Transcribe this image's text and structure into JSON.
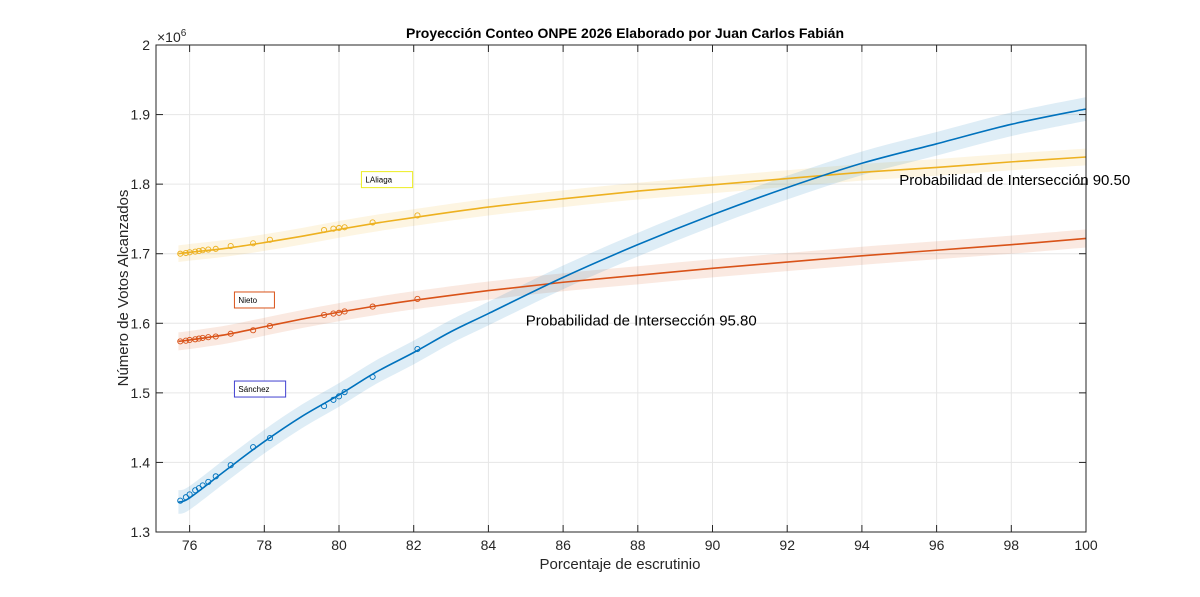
{
  "chart_data": {
    "type": "line",
    "title": "Proyección Conteo ONPE 2026 Elaborado por Juan Carlos Fabián",
    "xlabel": "Porcentaje de escrutinio",
    "ylabel": "Número de Votos Alcanzados",
    "y_exponent_label": "×10",
    "y_exponent_power": "6",
    "xlim": [
      75.1,
      100
    ],
    "ylim": [
      1.3,
      2.0
    ],
    "y_scale_factor": 1000000,
    "xticks": [
      76,
      78,
      80,
      82,
      84,
      86,
      88,
      90,
      92,
      94,
      96,
      98,
      100
    ],
    "yticks": [
      1.3,
      1.4,
      1.5,
      1.6,
      1.7,
      1.8,
      1.9,
      2.0
    ],
    "xtick_labels": [
      "76",
      "78",
      "80",
      "82",
      "84",
      "86",
      "88",
      "90",
      "92",
      "94",
      "96",
      "98",
      "100"
    ],
    "ytick_labels": [
      "1.3",
      "1.4",
      "1.5",
      "1.6",
      "1.7",
      "1.8",
      "1.9",
      "2"
    ],
    "grid": true,
    "series": [
      {
        "name": "LAliaga",
        "color": "#EDB120",
        "band_half_width": 0.012,
        "curve": {
          "x": [
            75.7,
            76,
            77,
            78,
            79,
            80,
            81,
            82,
            84,
            86,
            88,
            90,
            92,
            94,
            96,
            98,
            100
          ],
          "y": [
            1.7,
            1.702,
            1.708,
            1.716,
            1.725,
            1.735,
            1.744,
            1.752,
            1.767,
            1.779,
            1.79,
            1.799,
            1.808,
            1.817,
            1.824,
            1.832,
            1.839
          ]
        },
        "points": {
          "x": [
            75.75,
            75.9,
            76.0,
            76.15,
            76.25,
            76.35,
            76.5,
            76.7,
            77.1,
            77.7,
            78.15,
            79.6,
            79.85,
            80.0,
            80.15,
            80.9,
            82.1
          ],
          "y": [
            1.7,
            1.701,
            1.702,
            1.703,
            1.704,
            1.705,
            1.706,
            1.707,
            1.711,
            1.715,
            1.72,
            1.734,
            1.736,
            1.737,
            1.738,
            1.745,
            1.755
          ]
        }
      },
      {
        "name": "Nieto",
        "color": "#D95319",
        "band_half_width": 0.013,
        "curve": {
          "x": [
            75.7,
            76,
            77,
            78,
            79,
            80,
            81,
            82,
            84,
            86,
            88,
            90,
            92,
            94,
            96,
            98,
            100
          ],
          "y": [
            1.574,
            1.576,
            1.584,
            1.595,
            1.606,
            1.616,
            1.625,
            1.633,
            1.647,
            1.659,
            1.669,
            1.679,
            1.688,
            1.697,
            1.705,
            1.713,
            1.722
          ]
        },
        "points": {
          "x": [
            75.75,
            75.9,
            76.0,
            76.15,
            76.25,
            76.35,
            76.5,
            76.7,
            77.1,
            77.7,
            78.15,
            79.6,
            79.85,
            80.0,
            80.15,
            80.9,
            82.1
          ],
          "y": [
            1.574,
            1.575,
            1.576,
            1.577,
            1.578,
            1.579,
            1.58,
            1.581,
            1.585,
            1.59,
            1.596,
            1.612,
            1.614,
            1.615,
            1.617,
            1.624,
            1.635
          ]
        }
      },
      {
        "name": "Sánchez",
        "color": "#0072BD",
        "band_half_width": 0.017,
        "curve": {
          "x": [
            75.7,
            76,
            77,
            78,
            79,
            80,
            81,
            82,
            83,
            84,
            86,
            88,
            90,
            92,
            94,
            96,
            98,
            100
          ],
          "y": [
            1.343,
            1.349,
            1.39,
            1.43,
            1.466,
            1.497,
            1.53,
            1.558,
            1.588,
            1.614,
            1.666,
            1.713,
            1.756,
            1.795,
            1.83,
            1.858,
            1.886,
            1.908
          ]
        },
        "points": {
          "x": [
            75.75,
            75.9,
            76.0,
            76.15,
            76.25,
            76.35,
            76.5,
            76.7,
            77.1,
            77.7,
            78.15,
            79.6,
            79.85,
            80.0,
            80.15,
            80.9,
            82.1
          ],
          "y": [
            1.345,
            1.35,
            1.354,
            1.36,
            1.363,
            1.367,
            1.372,
            1.38,
            1.396,
            1.422,
            1.435,
            1.481,
            1.49,
            1.495,
            1.501,
            1.523,
            1.563
          ]
        }
      }
    ],
    "labels": [
      {
        "text": "LAliaga",
        "x": 80.6,
        "y": 1.795,
        "border_color": "#EDED20"
      },
      {
        "text": "Nieto",
        "x": 77.2,
        "y": 1.622,
        "border_color": "#D95319"
      },
      {
        "text": "Sánchez",
        "x": 77.2,
        "y": 1.494,
        "border_color": "#4040D0"
      }
    ],
    "annotations": [
      {
        "text": "Probabilidad de Intersección 90.50",
        "x": 95.0,
        "y": 1.799
      },
      {
        "text": "Probabilidad de Intersección 95.80",
        "x": 85.0,
        "y": 1.597
      }
    ]
  }
}
